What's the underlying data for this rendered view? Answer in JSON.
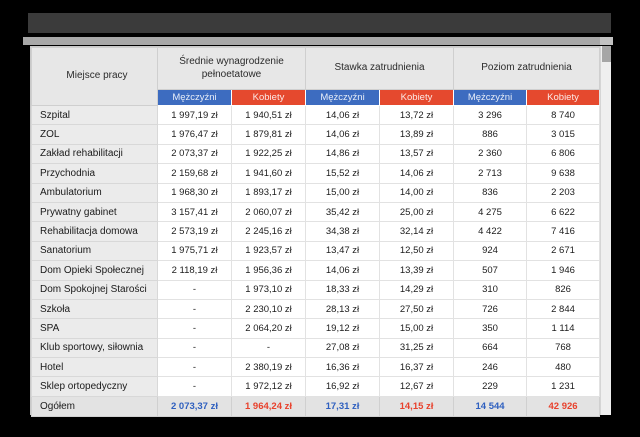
{
  "table": {
    "corner_header": "Miejsce pracy",
    "groups": [
      {
        "label": "Średnie wynagrodzenie pełnoetatowe"
      },
      {
        "label": "Stawka zatrudnienia"
      },
      {
        "label": "Poziom zatrudnienia"
      }
    ],
    "sub_headers": {
      "male": "Mężczyźni",
      "female": "Kobiety"
    },
    "rows": [
      {
        "label": "Szpital",
        "values": [
          "1 997,19 zł",
          "1 940,51 zł",
          "14,06 zł",
          "13,72 zł",
          "3 296",
          "8 740"
        ]
      },
      {
        "label": "ZOL",
        "values": [
          "1 976,47 zł",
          "1 879,81 zł",
          "14,06 zł",
          "13,89 zł",
          "886",
          "3 015"
        ]
      },
      {
        "label": "Zakład rehabilitacji",
        "values": [
          "2 073,37 zł",
          "1 922,25 zł",
          "14,86 zł",
          "13,57 zł",
          "2 360",
          "6 806"
        ]
      },
      {
        "label": "Przychodnia",
        "values": [
          "2 159,68 zł",
          "1 941,60 zł",
          "15,52 zł",
          "14,06 zł",
          "2 713",
          "9 638"
        ]
      },
      {
        "label": "Ambulatorium",
        "values": [
          "1 968,30 zł",
          "1 893,17 zł",
          "15,00 zł",
          "14,00 zł",
          "836",
          "2 203"
        ]
      },
      {
        "label": "Prywatny gabinet",
        "values": [
          "3 157,41 zł",
          "2 060,07 zł",
          "35,42 zł",
          "25,00 zł",
          "4 275",
          "6 622"
        ]
      },
      {
        "label": "Rehabilitacja domowa",
        "values": [
          "2 573,19 zł",
          "2 245,16 zł",
          "34,38 zł",
          "32,14 zł",
          "4 422",
          "7 416"
        ]
      },
      {
        "label": "Sanatorium",
        "values": [
          "1 975,71 zł",
          "1 923,57 zł",
          "13,47 zł",
          "12,50 zł",
          "924",
          "2 671"
        ]
      },
      {
        "label": "Dom Opieki Społecznej",
        "values": [
          "2 118,19 zł",
          "1 956,36 zł",
          "14,06 zł",
          "13,39 zł",
          "507",
          "1 946"
        ]
      },
      {
        "label": "Dom Spokojnej Starości",
        "values": [
          "-",
          "1 973,10 zł",
          "18,33 zł",
          "14,29 zł",
          "310",
          "826"
        ]
      },
      {
        "label": "Szkoła",
        "values": [
          "-",
          "2 230,10 zł",
          "28,13 zł",
          "27,50 zł",
          "726",
          "2 844"
        ]
      },
      {
        "label": "SPA",
        "values": [
          "-",
          "2 064,20 zł",
          "19,12 zł",
          "15,00 zł",
          "350",
          "1 114"
        ]
      },
      {
        "label": "Klub sportowy, siłownia",
        "values": [
          "-",
          "-",
          "27,08 zł",
          "31,25 zł",
          "664",
          "768"
        ]
      },
      {
        "label": "Hotel",
        "values": [
          "-",
          "2 380,19 zł",
          "16,36 zł",
          "16,37 zł",
          "246",
          "480"
        ]
      },
      {
        "label": "Sklep ortopedyczny",
        "values": [
          "-",
          "1 972,12 zł",
          "16,92 zł",
          "12,67 zł",
          "229",
          "1 231"
        ]
      }
    ],
    "total_row": {
      "label": "Ogółem",
      "values": [
        "2 073,37 zł",
        "1 964,24 zł",
        "17,31 zł",
        "14,15 zł",
        "14 544",
        "42 926"
      ]
    },
    "colors": {
      "male_header": "#3D6CC0",
      "female_header": "#E5492E",
      "total_male_text": "#2E5FBF",
      "total_female_text": "#E8412C"
    }
  }
}
